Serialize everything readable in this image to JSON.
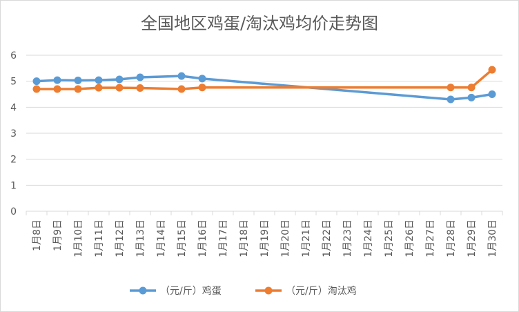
{
  "chart_data": {
    "type": "line",
    "title": "全国地区鸡蛋/淘汰鸡均价走势图",
    "xlabel": "",
    "ylabel": "",
    "ylim": [
      0,
      6
    ],
    "yticks": [
      0,
      1,
      2,
      3,
      4,
      5,
      6
    ],
    "grid": true,
    "legend_position": "bottom",
    "categories": [
      "1月8日",
      "1月9日",
      "1月10日",
      "1月11日",
      "1月12日",
      "1月13日",
      "1月14日",
      "1月15日",
      "1月16日",
      "1月17日",
      "1月18日",
      "1月19日",
      "1月20日",
      "1月21日",
      "1月22日",
      "1月23日",
      "1月24日",
      "1月25日",
      "1月26日",
      "1月27日",
      "1月28日",
      "1月29日",
      "1月30日"
    ],
    "series": [
      {
        "name": "（元/斤）鸡蛋",
        "color": "#5b9bd5",
        "values": [
          5.0,
          5.04,
          5.03,
          5.04,
          5.07,
          5.15,
          null,
          5.2,
          5.1,
          null,
          null,
          null,
          null,
          null,
          null,
          null,
          null,
          null,
          null,
          null,
          4.3,
          4.37,
          4.5
        ]
      },
      {
        "name": "（元/斤）淘汰鸡",
        "color": "#ed7d31",
        "values": [
          4.7,
          4.7,
          4.7,
          4.75,
          4.75,
          4.74,
          null,
          4.7,
          4.76,
          null,
          null,
          null,
          null,
          null,
          null,
          null,
          null,
          null,
          null,
          null,
          4.76,
          4.76,
          5.44
        ]
      }
    ]
  }
}
